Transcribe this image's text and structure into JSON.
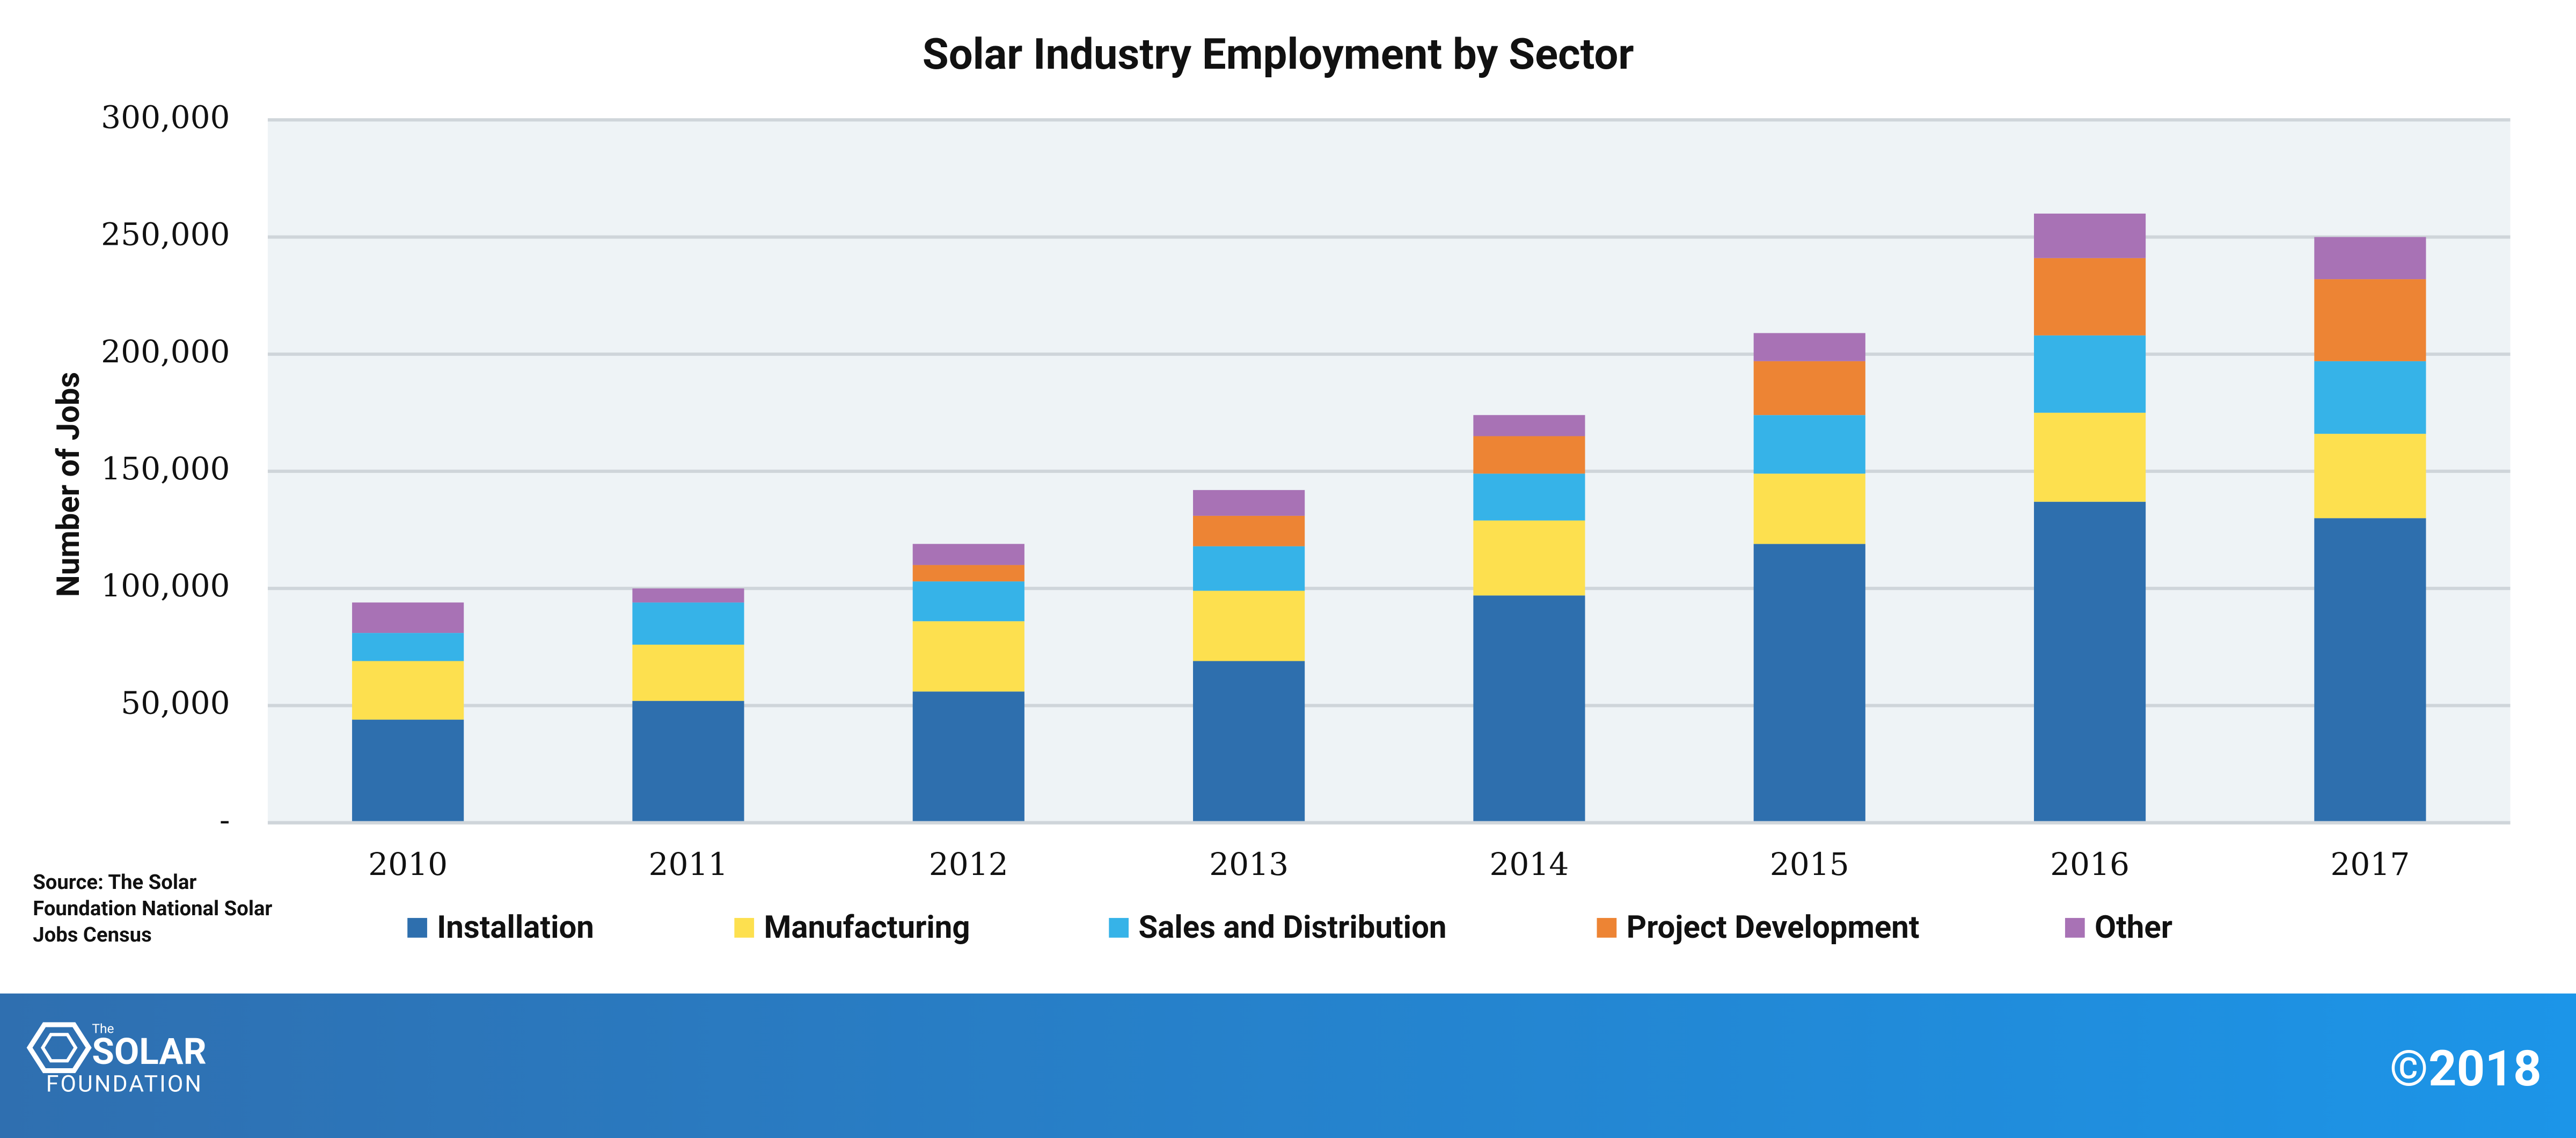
{
  "chart_data": {
    "type": "stacked_bar",
    "title": "Solar Industry Employment by Sector",
    "y_label": "Number of Jobs",
    "categories": [
      "2010",
      "2011",
      "2012",
      "2013",
      "2014",
      "2015",
      "2016",
      "2017"
    ],
    "series": [
      {
        "name": "Installation",
        "color": "#2e6fae",
        "values": [
          44000,
          52000,
          56000,
          69000,
          97000,
          119000,
          137000,
          130000
        ]
      },
      {
        "name": "Manufacturing",
        "color": "#fde04f",
        "values": [
          25000,
          24000,
          30000,
          30000,
          32000,
          30000,
          38000,
          36000
        ]
      },
      {
        "name": "Sales and Distribution",
        "color": "#36b3e8",
        "values": [
          12000,
          18000,
          17000,
          19000,
          20000,
          25000,
          33000,
          31000
        ]
      },
      {
        "name": "Project Development",
        "color": "#ed8434",
        "values": [
          null,
          null,
          7000,
          13000,
          16000,
          23000,
          33000,
          35000
        ]
      },
      {
        "name": "Other",
        "color": "#a872b5",
        "values": [
          13000,
          6000,
          9000,
          11000,
          9000,
          12000,
          19000,
          18000
        ]
      }
    ],
    "ylim": [
      0,
      300000
    ],
    "yticks": [
      {
        "value": 0,
        "label": "-"
      },
      {
        "value": 50000,
        "label": "50,000"
      },
      {
        "value": 100000,
        "label": "100,000"
      },
      {
        "value": 150000,
        "label": "150,000"
      },
      {
        "value": 200000,
        "label": "200,000"
      },
      {
        "value": 250000,
        "label": "250,000"
      },
      {
        "value": 300000,
        "label": "300,000"
      }
    ],
    "grid": true,
    "legend": "bottom",
    "source_lines": [
      "Source: The Solar",
      "Foundation National Solar",
      "Jobs Census"
    ]
  },
  "footer": {
    "logo_small": "The",
    "logo_main": "SOLAR",
    "logo_sub": "FOUNDATION",
    "copyright": "©2018"
  }
}
